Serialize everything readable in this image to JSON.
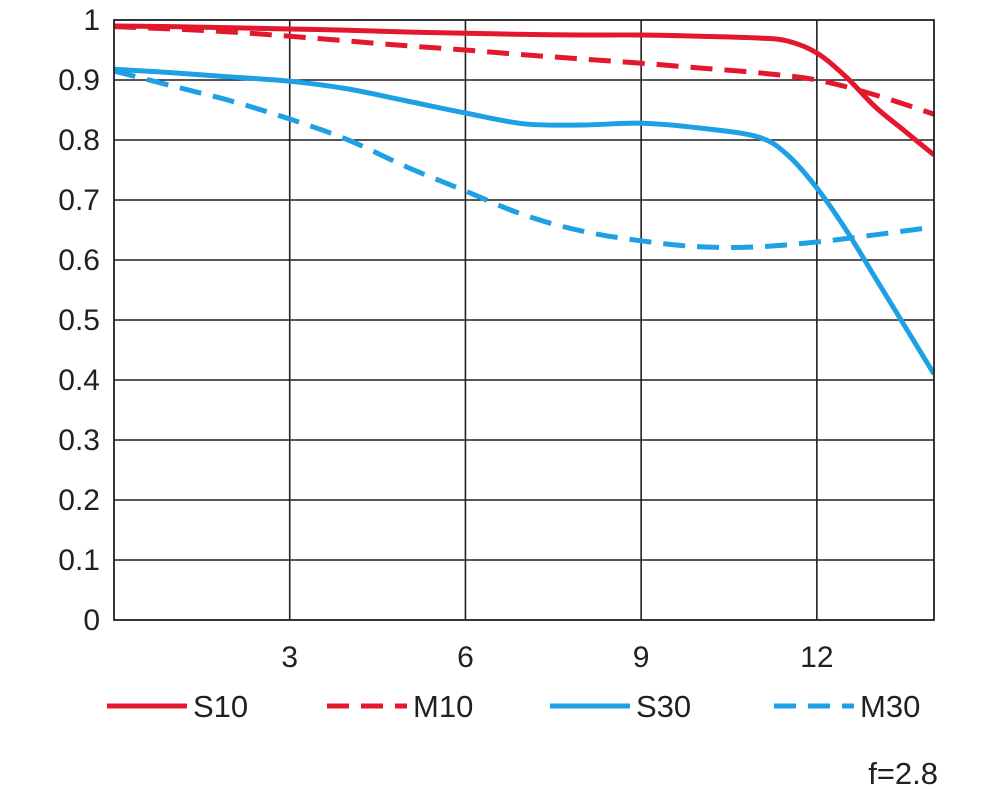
{
  "chart_data": {
    "type": "line",
    "title": "",
    "xlabel": "",
    "ylabel": "",
    "xlim": [
      0,
      14
    ],
    "ylim": [
      0,
      1
    ],
    "grid": true,
    "x_ticks": [
      3,
      6,
      9,
      12
    ],
    "x_tick_labels": [
      "3",
      "6",
      "9",
      "12"
    ],
    "y_ticks": [
      0,
      0.1,
      0.2,
      0.3,
      0.4,
      0.5,
      0.6,
      0.7,
      0.8,
      0.9,
      1
    ],
    "y_tick_labels": [
      "0",
      "0.1",
      "0.2",
      "0.3",
      "0.4",
      "0.5",
      "0.6",
      "0.7",
      "0.8",
      "0.9",
      "1"
    ],
    "legend_position": "bottom",
    "series": [
      {
        "name": "S10",
        "color": "#e3182d",
        "style": "solid",
        "x": [
          0,
          1,
          2,
          3,
          4,
          5,
          6,
          7,
          8,
          9,
          10,
          11,
          11.5,
          12,
          12.5,
          13,
          13.5,
          14
        ],
        "y": [
          0.99,
          0.989,
          0.987,
          0.985,
          0.983,
          0.98,
          0.978,
          0.976,
          0.975,
          0.975,
          0.973,
          0.97,
          0.965,
          0.945,
          0.905,
          0.855,
          0.815,
          0.775
        ]
      },
      {
        "name": "M10",
        "color": "#e3182d",
        "style": "dashed",
        "x": [
          0,
          1,
          2,
          3,
          4,
          5,
          6,
          7,
          8,
          9,
          10,
          11,
          12,
          13,
          14
        ],
        "y": [
          0.989,
          0.985,
          0.98,
          0.973,
          0.965,
          0.957,
          0.95,
          0.942,
          0.935,
          0.928,
          0.92,
          0.912,
          0.9,
          0.875,
          0.843
        ]
      },
      {
        "name": "S30",
        "color": "#1ea0e4",
        "style": "solid",
        "x": [
          0,
          1,
          2,
          3,
          4,
          5,
          6,
          7,
          8,
          9,
          10,
          11,
          11.5,
          12,
          12.5,
          13,
          13.5,
          14
        ],
        "y": [
          0.918,
          0.912,
          0.905,
          0.898,
          0.885,
          0.865,
          0.845,
          0.827,
          0.825,
          0.828,
          0.82,
          0.805,
          0.775,
          0.72,
          0.65,
          0.57,
          0.49,
          0.41
        ]
      },
      {
        "name": "M30",
        "color": "#1ea0e4",
        "style": "dashed",
        "x": [
          0,
          1,
          2,
          3,
          4,
          5,
          6,
          7,
          8,
          9,
          10,
          11,
          12,
          13,
          14
        ],
        "y": [
          0.915,
          0.89,
          0.865,
          0.835,
          0.8,
          0.755,
          0.715,
          0.675,
          0.648,
          0.632,
          0.622,
          0.622,
          0.63,
          0.642,
          0.655
        ]
      }
    ]
  },
  "footnote": "f=2.8"
}
